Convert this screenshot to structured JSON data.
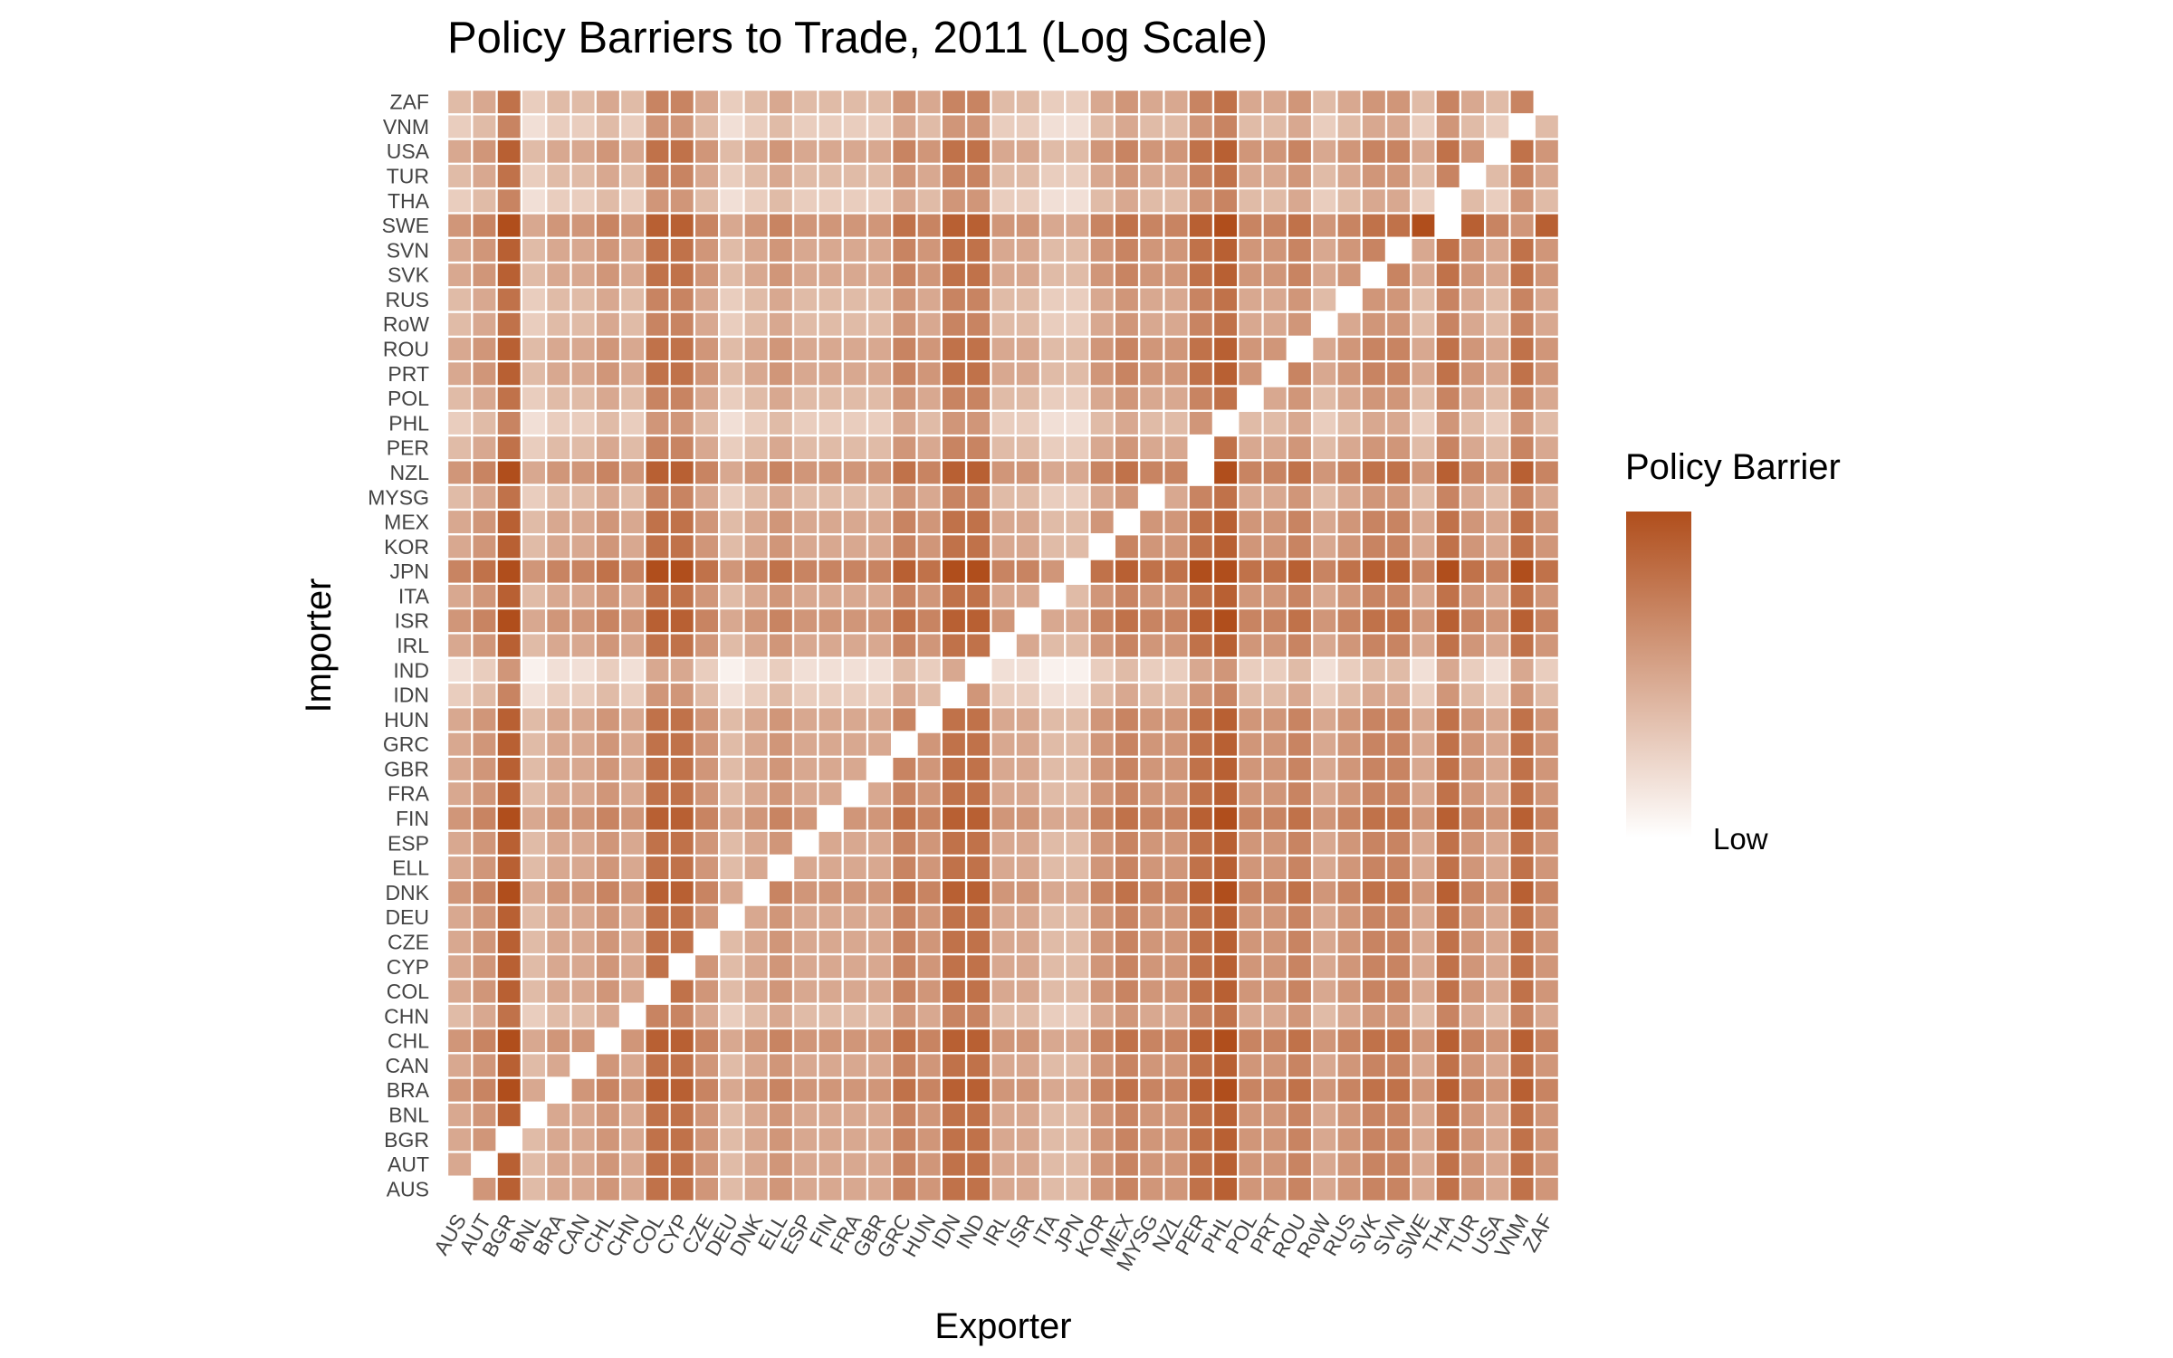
{
  "chart_data": {
    "type": "heatmap",
    "title": "Policy Barriers to Trade, 2011 (Log Scale)",
    "xlabel": "Exporter",
    "ylabel": "Importer",
    "scale": "log",
    "countries": [
      "AUS",
      "AUT",
      "BGR",
      "BNL",
      "BRA",
      "CAN",
      "CHL",
      "CHN",
      "COL",
      "CYP",
      "CZE",
      "DEU",
      "DNK",
      "ELL",
      "ESP",
      "FIN",
      "FRA",
      "GBR",
      "GRC",
      "HUN",
      "IDN",
      "IND",
      "IRL",
      "ISR",
      "ITA",
      "JPN",
      "KOR",
      "MEX",
      "MYSG",
      "NZL",
      "PER",
      "PHL",
      "POL",
      "PRT",
      "ROU",
      "RoW",
      "RUS",
      "SVK",
      "SVN",
      "SWE",
      "THA",
      "TUR",
      "USA",
      "VNM",
      "ZAF"
    ],
    "value_encoding": "relative level 0 (low) to 9 (high); '-' = no value (diagonal); rows = importers in country order, columns = exporters in country order",
    "values": [
      "-583445477534544446577443356557855645664 75475",
      "4-8344547753454444657744335655785564566475475",
      "45-344547753454444657744335655785564566475475",
      "458-44547753454444657744335655785564566475475",
      "5694-5658864565555768855446766896675677586586",
      "45834-547753454444657744335655785564566475475",
      "569455-58864565555768855446766896675677586586",
      "3472334-6642343333546633224544674453455364364",
      "45834454-753454444657744335655785564566475475",
      "458344547-53454444657744335655785564566475475",
      "4583445477-345444465774433565578556456647 5475",
      "45834454775-45444465774433565578556456647 5475",
      "569455658864-6555576885544676689667567758 6586",
      "4583445477534-444465774433565578556456647 5475",
      "45834454775345-44465774433565578556456647 5475",
      "569455658864565-5576885544676689667567758 6586",
      "4583445477534544-465774433565578556456647 5475",
      "45834454775345444-65774433565578556456647 5475",
      "458344547753454444-5774433565578556456647 5475",
      "4583445477534544446-774433565578556456647 5475",
      "23612232553123222243-522113433563342344253253",
      "125011214420121111324-11002322452231233142142",
      "4583445477534544446577-4335655785564566475475",
      "56945565886456555576885-446766896675677586586",
      "45834454775345444465774 4-35655785564566475475",
      "6795667699756766668799665-7877997786788697697",
      "45834454775345444465774433-655785564566475475",
      "458344547753454444657744335-55785564566475475",
      "3472334366423433335466332245-4674453455364364",
      "569455658864565555768855446766-96675677586586",
      "347233436642343333546633224544-744534553643 64",
      "2361223255312322224355221134335-3342344253253",
      "347233436642343333546633224544 67-4534553643 64",
      "458344547753454444657744335655785-645664 75475",
      "4583445477534544446577443356557855-45664 75475",
      "347233436642343333546633224544 67445-455364364",
      "347233436642343333546633224544 674453-55364364",
      "4583445477534544446577443356557855645-64 75475",
      "45834454775345444465774433565578556456-4 75475",
      "5694556588645655557688554467668966756779-86586",
      "2361223255312322224355221134335633423442-3253",
      "3472334366423433335466332245446744534553 6-364",
      "4583445477534544446577443356557855645664 75-75",
      "2361223255312322224355221134335633423442 532-3",
      "3472334366423433335466332245446744534553 6436-"
    ],
    "color_low": "#ffffff",
    "color_high": "#b04e1c",
    "grid": false,
    "legend": {
      "title": "Policy Barrier",
      "labels": [
        "Low"
      ],
      "placement": "right"
    }
  }
}
